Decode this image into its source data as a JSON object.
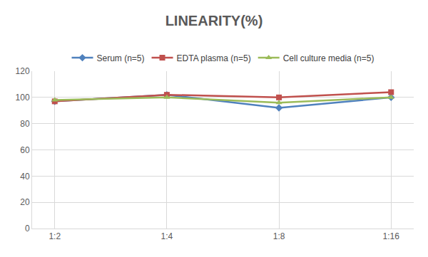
{
  "chart_data": {
    "type": "line",
    "title": "LINEARITY(%)",
    "categories": [
      "1:2",
      "1:4",
      "1:8",
      "1:16"
    ],
    "series": [
      {
        "name": "Serum (n=5)",
        "color": "#4f81bd",
        "marker": "diamond",
        "values": [
          97,
          102,
          92,
          100
        ]
      },
      {
        "name": "EDTA plasma (n=5)",
        "color": "#c0504d",
        "marker": "square",
        "values": [
          97,
          102,
          100,
          104
        ]
      },
      {
        "name": "Cell culture media (n=5)",
        "color": "#9bbb59",
        "marker": "triangle-up",
        "values": [
          98,
          100,
          96,
          100
        ]
      }
    ],
    "ylim": [
      0,
      120
    ],
    "yticks": [
      0,
      20,
      40,
      60,
      80,
      100,
      120
    ],
    "grid": true,
    "legend": "top"
  }
}
